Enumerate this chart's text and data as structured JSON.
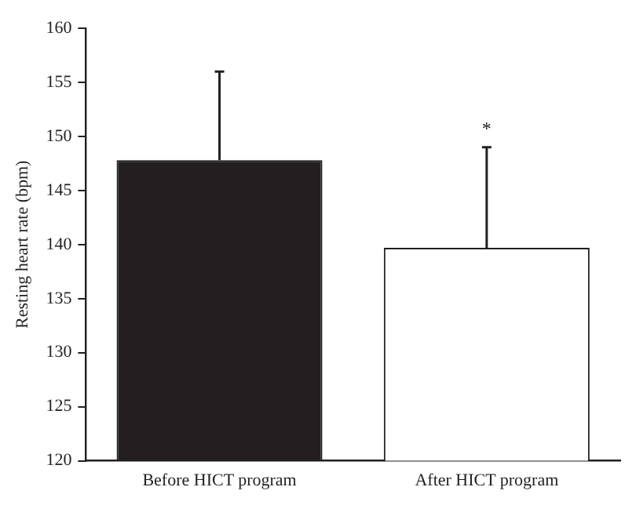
{
  "chart_data": {
    "type": "bar",
    "ylabel": "Resting heart rate (bpm)",
    "categories": [
      "Before HICT program",
      "After HICT program"
    ],
    "values": [
      147.8,
      139.7
    ],
    "colors": [
      "#231f20",
      "#ffffff"
    ],
    "errors": [
      [
        147.8,
        156
      ],
      [
        139.7,
        149
      ]
    ],
    "ylim": [
      120,
      160
    ],
    "yticks": [
      120,
      125,
      130,
      135,
      140,
      145,
      150,
      155,
      160
    ],
    "grid": false,
    "annotations": [
      "*"
    ]
  }
}
